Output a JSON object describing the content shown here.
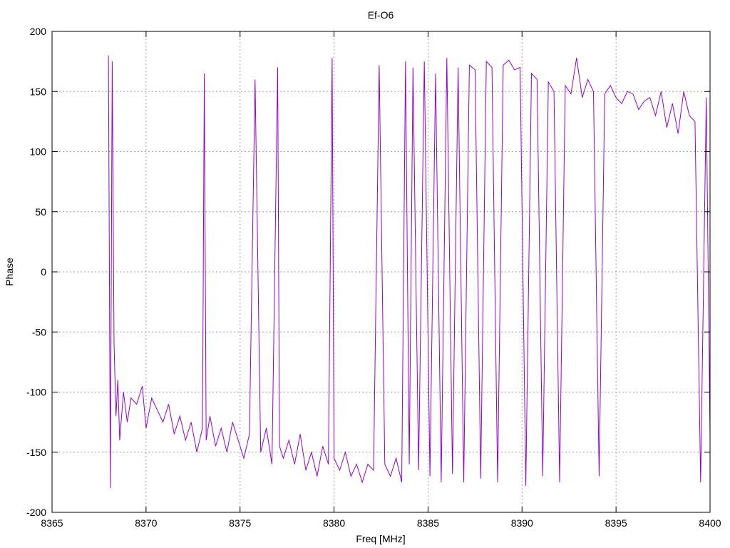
{
  "chart_data": {
    "type": "line",
    "title": "Ef-O6",
    "xlabel": "Freq [MHz]",
    "ylabel": "Phase",
    "xlim": [
      8365,
      8400
    ],
    "ylim": [
      -200,
      200
    ],
    "xticks": [
      8365,
      8370,
      8375,
      8380,
      8385,
      8390,
      8395,
      8400
    ],
    "yticks": [
      -200,
      -150,
      -100,
      -50,
      0,
      50,
      100,
      150,
      200
    ],
    "grid": true,
    "legend": "none",
    "series": [
      {
        "color": "#9400d3",
        "x": [
          8368.0,
          8368.1,
          8368.2,
          8368.3,
          8368.4,
          8368.5,
          8368.6,
          8368.8,
          8369.0,
          8369.2,
          8369.5,
          8369.8,
          8370.0,
          8370.3,
          8370.6,
          8370.9,
          8371.2,
          8371.5,
          8371.8,
          8372.1,
          8372.4,
          8372.7,
          8373.0,
          8373.1,
          8373.2,
          8373.4,
          8373.7,
          8374.0,
          8374.3,
          8374.6,
          8374.9,
          8375.2,
          8375.5,
          8375.8,
          8376.1,
          8376.4,
          8376.7,
          8377.0,
          8377.1,
          8377.3,
          8377.6,
          8377.9,
          8378.2,
          8378.5,
          8378.8,
          8379.1,
          8379.4,
          8379.7,
          8379.9,
          8380.0,
          8380.3,
          8380.6,
          8380.9,
          8381.2,
          8381.5,
          8381.8,
          8382.1,
          8382.4,
          8382.7,
          8383.0,
          8383.3,
          8383.6,
          8383.8,
          8384.0,
          8384.2,
          8384.5,
          8384.8,
          8385.1,
          8385.4,
          8385.7,
          8386.0,
          8386.3,
          8386.6,
          8386.9,
          8387.2,
          8387.5,
          8387.8,
          8388.1,
          8388.4,
          8388.7,
          8389.0,
          8389.3,
          8389.6,
          8389.9,
          8390.2,
          8390.5,
          8390.8,
          8391.1,
          8391.4,
          8391.7,
          8392.0,
          8392.3,
          8392.6,
          8392.9,
          8393.2,
          8393.5,
          8393.8,
          8394.1,
          8394.4,
          8394.7,
          8395.0,
          8395.3,
          8395.6,
          8395.9,
          8396.2,
          8396.5,
          8396.8,
          8397.1,
          8397.4,
          8397.7,
          8398.0,
          8398.3,
          8398.6,
          8398.9,
          8399.2,
          8399.5,
          8399.8,
          8400.0
        ],
        "y": [
          180,
          -180,
          175,
          -60,
          -120,
          -90,
          -140,
          -100,
          -125,
          -105,
          -110,
          -95,
          -130,
          -105,
          -115,
          -125,
          -110,
          -135,
          -120,
          -140,
          -125,
          -150,
          -130,
          165,
          -140,
          -120,
          -145,
          -130,
          -150,
          -125,
          -140,
          -155,
          -135,
          160,
          -150,
          -130,
          -160,
          170,
          -145,
          -155,
          -140,
          -160,
          -135,
          -165,
          -150,
          -170,
          -145,
          -160,
          178,
          -155,
          -165,
          -150,
          -170,
          -160,
          -175,
          -160,
          -165,
          172,
          -160,
          -170,
          -155,
          -175,
          175,
          -160,
          170,
          -165,
          175,
          -170,
          165,
          -175,
          178,
          -168,
          170,
          -175,
          172,
          168,
          -172,
          175,
          170,
          -175,
          172,
          176,
          168,
          170,
          -178,
          165,
          160,
          -170,
          158,
          150,
          -175,
          155,
          148,
          178,
          145,
          160,
          150,
          -170,
          148,
          155,
          145,
          140,
          150,
          148,
          135,
          142,
          145,
          130,
          150,
          120,
          140,
          115,
          150,
          130,
          125,
          -175,
          145,
          -135
        ]
      }
    ]
  }
}
